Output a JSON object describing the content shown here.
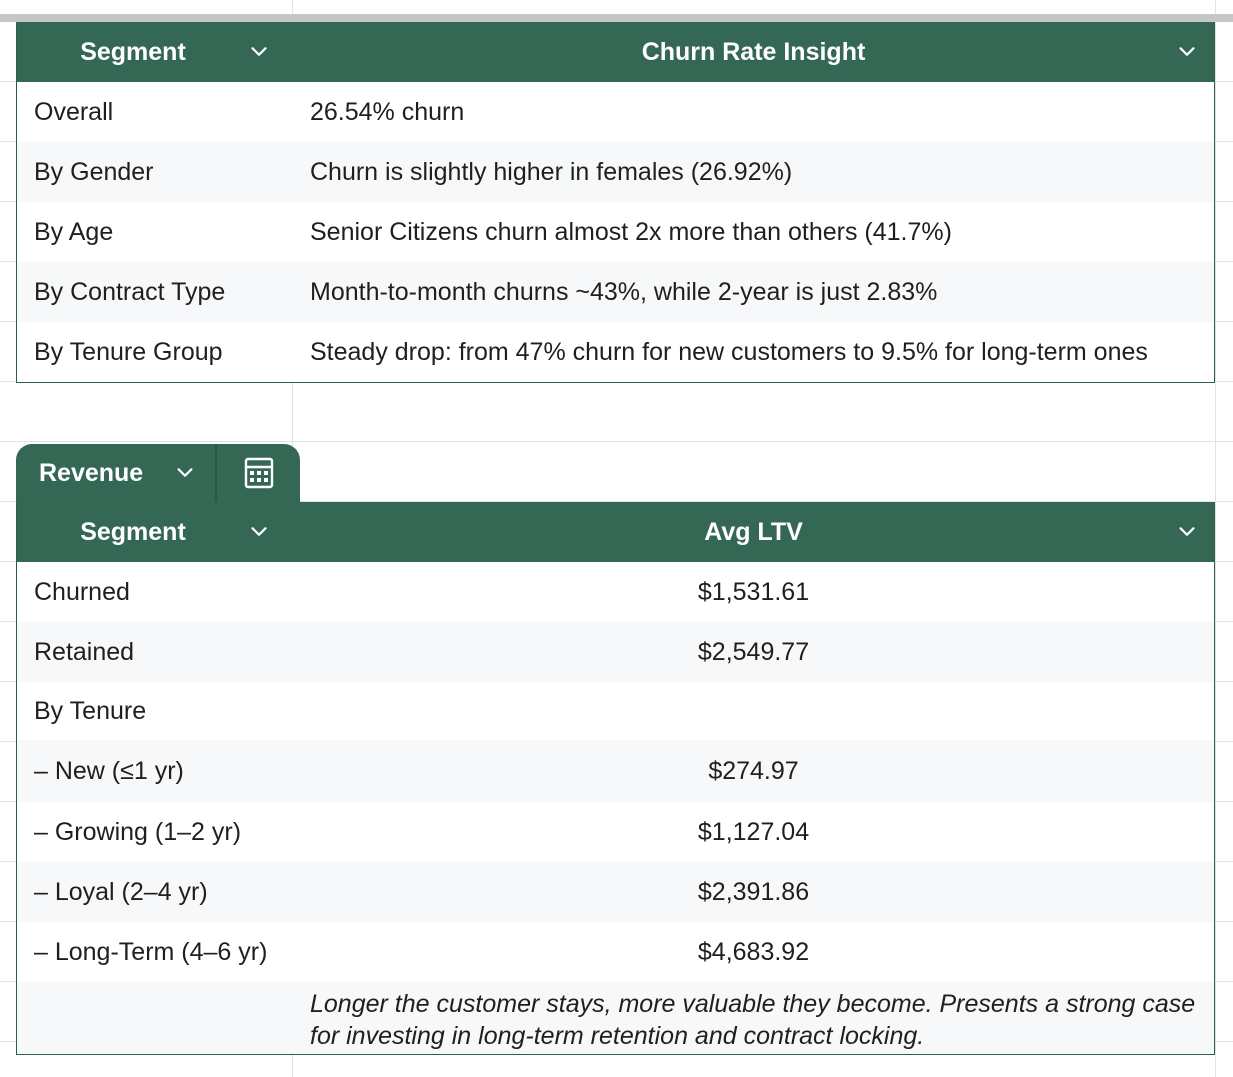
{
  "churn_table": {
    "headers": {
      "segment": "Segment",
      "insight": "Churn Rate Insight"
    },
    "rows": [
      {
        "segment": "Overall",
        "insight": "26.54% churn"
      },
      {
        "segment": "By Gender",
        "insight": "Churn is slightly higher in females (26.92%)"
      },
      {
        "segment": "By Age",
        "insight": "Senior Citizens churn almost 2x more than others (41.7%)"
      },
      {
        "segment": "By Contract Type",
        "insight": "Month-to-month churns ~43%, while 2-year is just 2.83%"
      },
      {
        "segment": "By Tenure Group",
        "insight": "Steady drop: from 47% churn for new customers to 9.5% for long-term ones"
      }
    ]
  },
  "revenue_tab": {
    "name": "Revenue",
    "calc_icon": "calculator-icon"
  },
  "revenue_table": {
    "headers": {
      "segment": "Segment",
      "ltv": "Avg LTV"
    },
    "rows": [
      {
        "segment": "Churned",
        "ltv": "$1,531.61"
      },
      {
        "segment": "Retained",
        "ltv": "$2,549.77"
      },
      {
        "segment": "By Tenure",
        "ltv": ""
      },
      {
        "segment": "– New (≤1 yr)",
        "ltv": "$274.97"
      },
      {
        "segment": "– Growing (1–2 yr)",
        "ltv": "$1,127.04"
      },
      {
        "segment": "– Loyal (2–4 yr)",
        "ltv": "$2,391.86"
      },
      {
        "segment": "– Long-Term (4–6 yr)",
        "ltv": "$4,683.92"
      }
    ],
    "note": "Longer the customer stays, more valuable they become. Presents a strong case for investing in long-term retention and contract locking."
  },
  "colors": {
    "header_bg": "#356854",
    "header_text": "#ffffff",
    "alt_row": "#f6f8f9",
    "border": "#2f5f4a"
  }
}
